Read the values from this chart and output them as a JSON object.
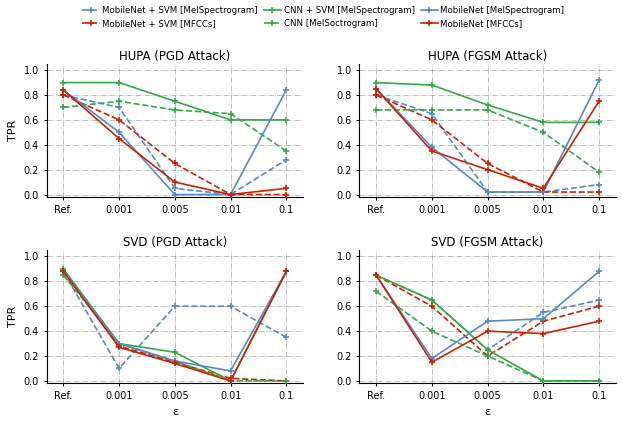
{
  "x_labels": [
    "Ref.",
    "0.001",
    "0.005",
    "0.01",
    "0.1"
  ],
  "x_vals": [
    0,
    1,
    2,
    3,
    4
  ],
  "title_fontsize": 8.5,
  "axis_label_fontsize": 8,
  "tick_fontsize": 7,
  "hupa_pgd": {
    "title": "HUPA (PGD Attack)",
    "mobilenet_svm_mel": [
      0.8,
      0.7,
      0.05,
      0.0,
      0.28
    ],
    "mobilenet_svm_mfcc": [
      0.8,
      0.6,
      0.25,
      0.0,
      0.0
    ],
    "cnn_svm_mel": [
      0.9,
      0.9,
      0.75,
      0.6,
      0.6
    ],
    "cnn_melsoc": [
      0.7,
      0.75,
      0.68,
      0.65,
      0.35
    ],
    "mobilenet_mel": [
      0.84,
      0.5,
      0.0,
      0.0,
      0.84
    ],
    "mobilenet_mfcc": [
      0.84,
      0.45,
      0.1,
      0.0,
      0.05
    ]
  },
  "hupa_fgsm": {
    "title": "HUPA (FGSM Attack)",
    "mobilenet_svm_mel": [
      0.8,
      0.65,
      0.02,
      0.02,
      0.08
    ],
    "mobilenet_svm_mfcc": [
      0.8,
      0.6,
      0.25,
      0.02,
      0.02
    ],
    "cnn_svm_mel": [
      0.9,
      0.88,
      0.72,
      0.58,
      0.58
    ],
    "cnn_melsoc": [
      0.68,
      0.68,
      0.68,
      0.5,
      0.18
    ],
    "mobilenet_mel": [
      0.85,
      0.38,
      0.02,
      0.02,
      0.92
    ],
    "mobilenet_mfcc": [
      0.85,
      0.35,
      0.2,
      0.05,
      0.75
    ]
  },
  "svd_pgd": {
    "title": "SVD (PGD Attack)",
    "mobilenet_svm_mel": [
      0.88,
      0.1,
      0.6,
      0.6,
      0.35
    ],
    "mobilenet_svm_mfcc": [
      0.88,
      0.28,
      0.15,
      0.02,
      0.0
    ],
    "cnn_svm_mel": [
      0.9,
      0.3,
      0.23,
      0.0,
      0.88
    ],
    "cnn_melsoc": [
      0.85,
      0.3,
      0.16,
      0.0,
      0.0
    ],
    "mobilenet_mel": [
      0.88,
      0.3,
      0.16,
      0.08,
      0.88
    ],
    "mobilenet_mfcc": [
      0.88,
      0.27,
      0.14,
      0.0,
      0.88
    ]
  },
  "svd_fgsm": {
    "title": "SVD (FGSM Attack)",
    "mobilenet_svm_mel": [
      0.85,
      0.65,
      0.25,
      0.55,
      0.65
    ],
    "mobilenet_svm_mfcc": [
      0.85,
      0.6,
      0.2,
      0.48,
      0.6
    ],
    "cnn_svm_mel": [
      0.85,
      0.65,
      0.25,
      0.0,
      0.0
    ],
    "cnn_melsoc": [
      0.72,
      0.4,
      0.2,
      0.0,
      0.0
    ],
    "mobilenet_mel": [
      0.85,
      0.18,
      0.48,
      0.5,
      0.88
    ],
    "mobilenet_mfcc": [
      0.85,
      0.15,
      0.4,
      0.38,
      0.48
    ]
  },
  "colors": {
    "blue": "#5588CC",
    "green": "#33AA44",
    "red": "#CC2200"
  }
}
